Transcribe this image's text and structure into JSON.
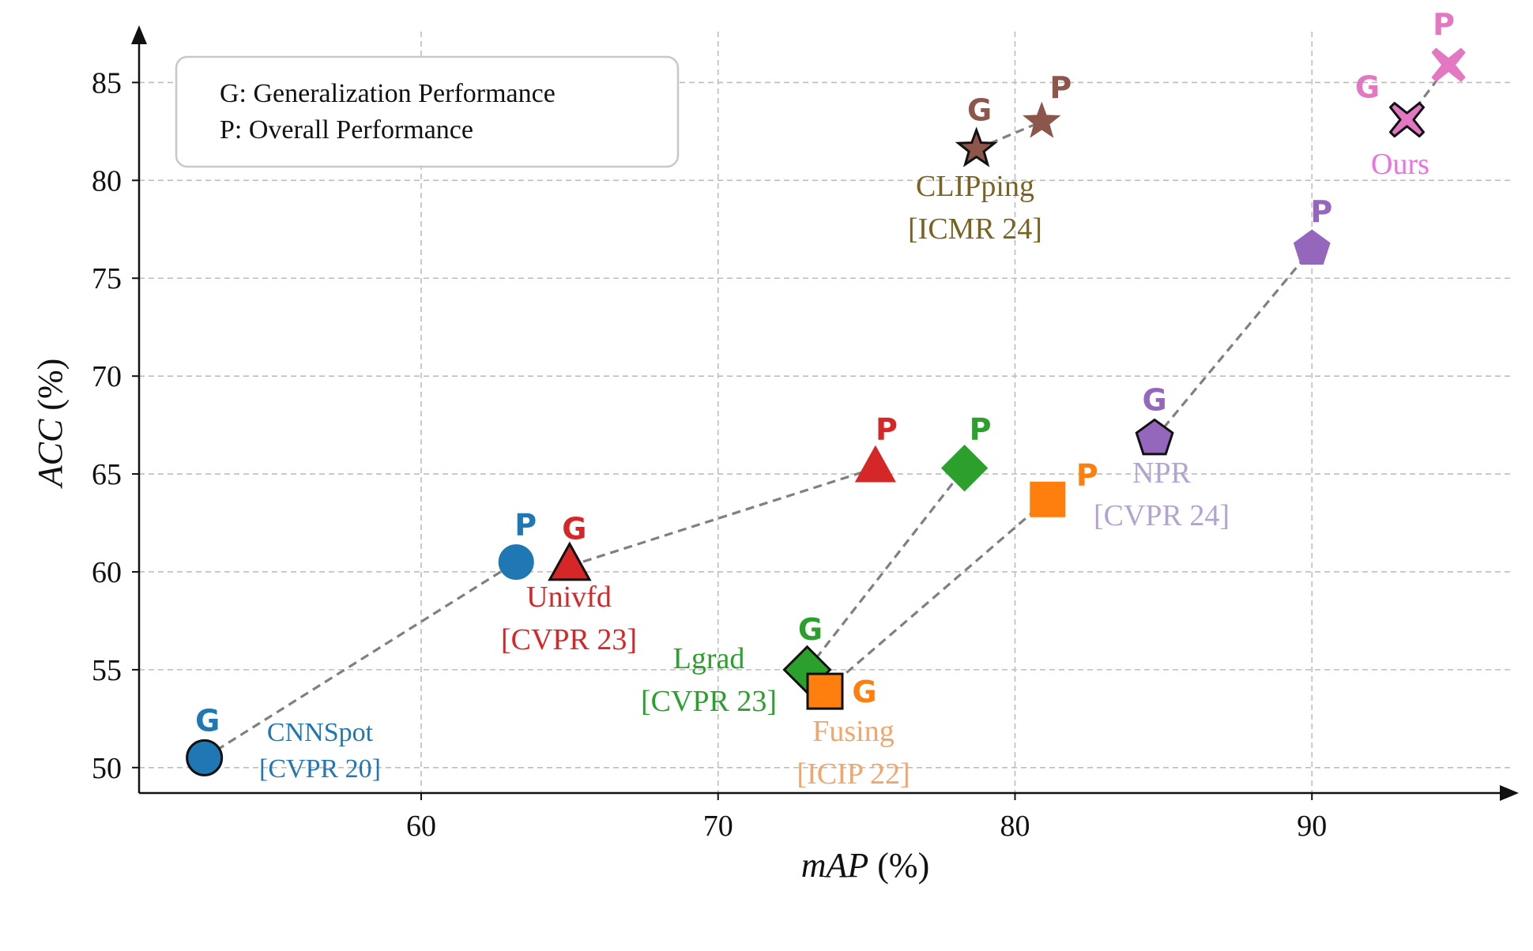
{
  "chart_data": {
    "type": "scatter",
    "xlabel_italic": "mAP",
    "xlabel_unit": " (%)",
    "ylabel_italic": "ACC",
    "ylabel_unit": " (%)",
    "xlim": [
      50.5,
      96.7
    ],
    "ylim": [
      48.7,
      87.6
    ],
    "xticks": [
      60,
      70,
      80,
      90
    ],
    "yticks": [
      50,
      55,
      60,
      65,
      70,
      75,
      80,
      85
    ],
    "grid": true,
    "legend": {
      "placement": "top-left",
      "lines": [
        "G: Generalization Performance",
        "P: Overall Performance"
      ]
    },
    "series": [
      {
        "name": "CNNSpot",
        "venue": "[CVPR 20]",
        "color": "#1f77b4",
        "label_color": "#1f77b4",
        "marker": "circle",
        "points": [
          {
            "tag": "G",
            "x": 52.7,
            "y": 50.5
          },
          {
            "tag": "P",
            "x": 63.2,
            "y": 60.5
          }
        ]
      },
      {
        "name": "Univfd",
        "venue": "[CVPR 23]",
        "color": "#d62728",
        "label_color": "#d62728",
        "marker": "triangle",
        "points": [
          {
            "tag": "G",
            "x": 65.0,
            "y": 60.3
          },
          {
            "tag": "P",
            "x": 75.3,
            "y": 65.3
          }
        ]
      },
      {
        "name": "Lgrad",
        "venue": "[CVPR 23]",
        "color": "#2ca02c",
        "label_color": "#2ca02c",
        "marker": "diamond",
        "points": [
          {
            "tag": "G",
            "x": 73.0,
            "y": 55.0
          },
          {
            "tag": "P",
            "x": 78.3,
            "y": 65.3
          }
        ]
      },
      {
        "name": "Fusing",
        "venue": "[ICIP 22]",
        "color": "#ff7f0e",
        "label_color": "#f2a66b",
        "marker": "square",
        "points": [
          {
            "tag": "G",
            "x": 73.6,
            "y": 53.9
          },
          {
            "tag": "P",
            "x": 81.1,
            "y": 63.7
          }
        ]
      },
      {
        "name": "NPR",
        "venue": "[CVPR 24]",
        "color": "#9467bd",
        "label_color": "#b3a3cf",
        "marker": "pentagon",
        "points": [
          {
            "tag": "G",
            "x": 84.7,
            "y": 66.8
          },
          {
            "tag": "P",
            "x": 90.0,
            "y": 76.5
          }
        ]
      },
      {
        "name": "CLIPping",
        "venue": "[ICMR 24]",
        "color": "#8c564b",
        "label_color": "#7a6320",
        "marker": "star",
        "points": [
          {
            "tag": "G",
            "x": 78.7,
            "y": 81.6
          },
          {
            "tag": "P",
            "x": 80.9,
            "y": 83.0
          }
        ]
      },
      {
        "name": "Ours",
        "venue": "",
        "color": "#e377c2",
        "label_color": "#ee6fdf",
        "marker": "x",
        "points": [
          {
            "tag": "G",
            "x": 93.2,
            "y": 83.1
          },
          {
            "tag": "P",
            "x": 94.6,
            "y": 85.9
          }
        ]
      }
    ]
  }
}
